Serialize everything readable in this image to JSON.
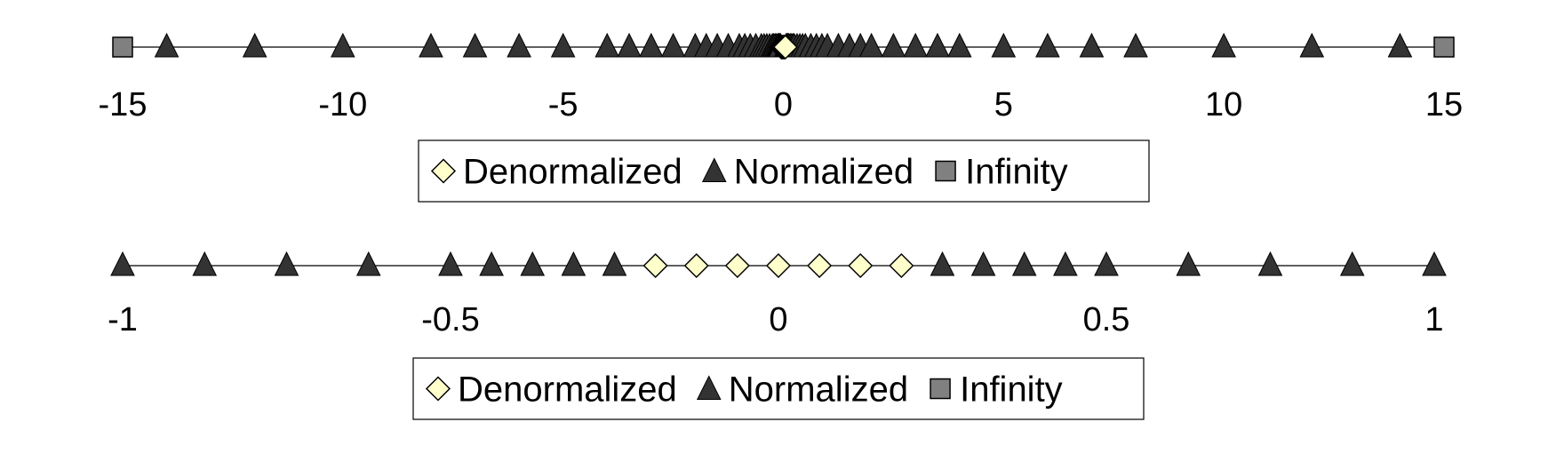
{
  "chart_data": [
    {
      "type": "scatter",
      "title": "",
      "xlabel": "",
      "ylabel": "",
      "xlim": [
        -15,
        15
      ],
      "tick_labels": [
        "-15",
        "-10",
        "-5",
        "0",
        "5",
        "10",
        "15"
      ],
      "ticks": [
        -15,
        -10,
        -5,
        0,
        5,
        10,
        15
      ],
      "grid": false,
      "legend_position": "bottom",
      "series": [
        {
          "name": "Denormalized",
          "marker": "diamond",
          "color": "#FFFFCC",
          "values": [
            -0.046875,
            -0.03125,
            -0.015625,
            0,
            0.015625,
            0.03125,
            0.046875
          ]
        },
        {
          "name": "Normalized",
          "marker": "triangle",
          "color": "#333333",
          "values": [
            -14,
            -12,
            -10,
            -8,
            -7,
            -6,
            -5,
            -4,
            -3.5,
            -3,
            -2.5,
            -2,
            -1.75,
            -1.5,
            -1.25,
            -1,
            -0.875,
            -0.75,
            -0.625,
            -0.5,
            -0.4375,
            -0.375,
            -0.3125,
            -0.25,
            -0.21875,
            -0.1875,
            -0.15625,
            -0.125,
            -0.109375,
            -0.09375,
            -0.078125,
            -0.0625,
            0.0625,
            0.078125,
            0.09375,
            0.109375,
            0.125,
            0.15625,
            0.1875,
            0.21875,
            0.25,
            0.3125,
            0.375,
            0.4375,
            0.5,
            0.625,
            0.75,
            0.875,
            1,
            1.25,
            1.5,
            1.75,
            2,
            2.5,
            3,
            3.5,
            4,
            5,
            6,
            7,
            8,
            10,
            12,
            14
          ]
        },
        {
          "name": "Infinity",
          "marker": "square",
          "color": "#808080",
          "values": [
            -15,
            15
          ]
        }
      ]
    },
    {
      "type": "scatter",
      "title": "",
      "xlabel": "",
      "ylabel": "",
      "xlim": [
        -1,
        1
      ],
      "tick_labels": [
        "-1",
        "-0.5",
        "0",
        "0.5",
        "1"
      ],
      "ticks": [
        -1,
        -0.5,
        0,
        0.5,
        1
      ],
      "grid": false,
      "legend_position": "bottom",
      "series": [
        {
          "name": "Denormalized",
          "marker": "diamond",
          "color": "#FFFFCC",
          "values": [
            -0.1875,
            -0.125,
            -0.0625,
            0,
            0.0625,
            0.125,
            0.1875
          ]
        },
        {
          "name": "Normalized",
          "marker": "triangle",
          "color": "#333333",
          "values": [
            -1,
            -0.875,
            -0.75,
            -0.625,
            -0.5,
            -0.4375,
            -0.375,
            -0.3125,
            -0.25,
            0.25,
            0.3125,
            0.375,
            0.4375,
            0.5,
            0.625,
            0.75,
            0.875,
            1
          ]
        },
        {
          "name": "Infinity",
          "marker": "square",
          "color": "#808080",
          "values": []
        }
      ]
    }
  ]
}
